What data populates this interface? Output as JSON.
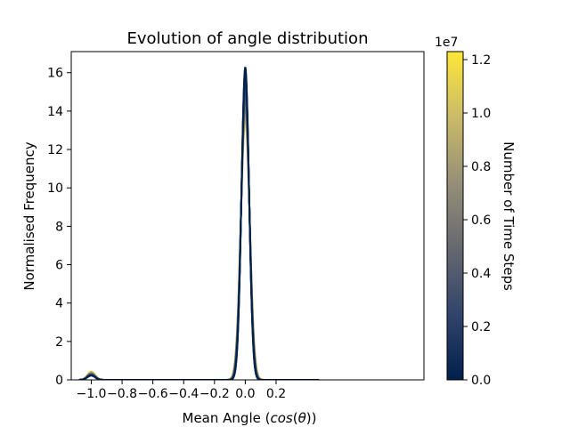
{
  "chart_data": {
    "type": "line",
    "title": "Evolution of angle distribution",
    "xlabel": "Mean Angle (cos(θ))",
    "xlabel_parts": {
      "prefix": "Mean Angle (",
      "italic1": "cos",
      "mid1": "(",
      "italic2": "θ",
      "suffix": "))"
    },
    "ylabel": "Normalised Frequency",
    "xlim": [
      -1.13,
      1.16
    ],
    "ylim": [
      0,
      17.1
    ],
    "xticks": [
      -1.0,
      -0.8,
      -0.6,
      -0.4,
      -0.2,
      0.0,
      0.2
    ],
    "xtick_labels": [
      "−1.0",
      "−0.8",
      "−0.6",
      "−0.4",
      "−0.2",
      "0.0",
      "0.2"
    ],
    "yticks": [
      0,
      2,
      4,
      6,
      8,
      10,
      12,
      14,
      16
    ],
    "ytick_labels": [
      "0",
      "2",
      "4",
      "6",
      "8",
      "10",
      "12",
      "14",
      "16"
    ],
    "grid": false,
    "series_model": "double-gaussian density: main peak at 0.0, small peak at -1.0",
    "series": [
      {
        "step": 0.0,
        "peak_height": 16.3,
        "peak_width": 0.0245,
        "minor_peak_height": 0.22
      },
      {
        "step": 500000.0,
        "peak_height": 16.1,
        "peak_width": 0.0248,
        "minor_peak_height": 0.23
      },
      {
        "step": 1000000.0,
        "peak_height": 15.8,
        "peak_width": 0.0252,
        "minor_peak_height": 0.24
      },
      {
        "step": 2000000.0,
        "peak_height": 15.5,
        "peak_width": 0.0257,
        "minor_peak_height": 0.26
      },
      {
        "step": 3000000.0,
        "peak_height": 15.2,
        "peak_width": 0.0262,
        "minor_peak_height": 0.27
      },
      {
        "step": 4000000.0,
        "peak_height": 14.9,
        "peak_width": 0.0267,
        "minor_peak_height": 0.29
      },
      {
        "step": 5000000.0,
        "peak_height": 14.6,
        "peak_width": 0.0272,
        "minor_peak_height": 0.3
      },
      {
        "step": 6000000.0,
        "peak_height": 14.4,
        "peak_width": 0.0276,
        "minor_peak_height": 0.32
      },
      {
        "step": 7000000.0,
        "peak_height": 14.2,
        "peak_width": 0.028,
        "minor_peak_height": 0.34
      },
      {
        "step": 8000000.0,
        "peak_height": 14.0,
        "peak_width": 0.0284,
        "minor_peak_height": 0.36
      },
      {
        "step": 9000000.0,
        "peak_height": 13.8,
        "peak_width": 0.0288,
        "minor_peak_height": 0.38
      },
      {
        "step": 10000000.0,
        "peak_height": 13.65,
        "peak_width": 0.0291,
        "minor_peak_height": 0.4
      },
      {
        "step": 11000000.0,
        "peak_height": 13.5,
        "peak_width": 0.0294,
        "minor_peak_height": 0.42
      },
      {
        "step": 12000000.0,
        "peak_height": 13.4,
        "peak_width": 0.0296,
        "minor_peak_height": 0.44
      }
    ],
    "colorbar": {
      "label": "Number of Time Steps",
      "multiplier": "1e7",
      "range": [
        0,
        1.23
      ],
      "ticks": [
        0.0,
        0.2,
        0.4,
        0.6,
        0.8,
        1.0,
        1.2
      ],
      "tick_labels": [
        "0.0",
        "0.2",
        "0.4",
        "0.6",
        "0.8",
        "1.0",
        "1.2"
      ],
      "colormap": "cividis",
      "colors": [
        "#00204c",
        "#31446b",
        "#666870",
        "#958f78",
        "#cbba69",
        "#fde738"
      ]
    }
  }
}
